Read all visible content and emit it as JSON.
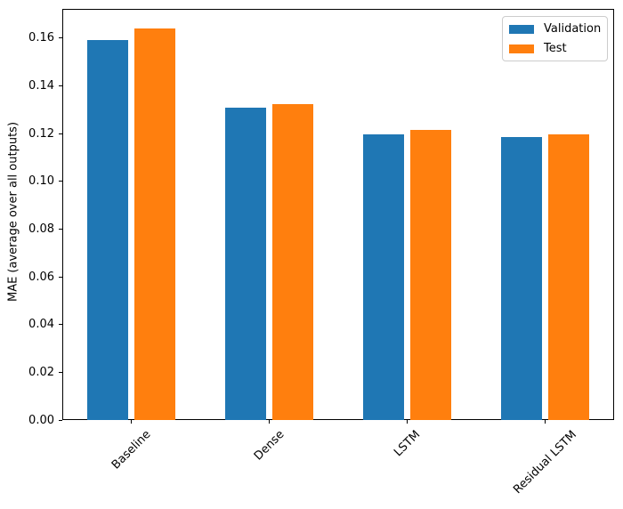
{
  "chart_data": {
    "type": "bar",
    "title": "",
    "xlabel": "",
    "ylabel": "MAE (average over all outputs)",
    "categories": [
      "Baseline",
      "Dense",
      "LSTM",
      "Residual LSTM"
    ],
    "series": [
      {
        "name": "Validation",
        "color": "#1f77b4",
        "values": [
          0.159,
          0.131,
          0.1195,
          0.1185
        ]
      },
      {
        "name": "Test",
        "color": "#ff7f0e",
        "values": [
          0.164,
          0.1325,
          0.1215,
          0.1195
        ]
      }
    ],
    "ylim": [
      0,
      0.1722
    ],
    "ytick_values": [
      0.0,
      0.02,
      0.04,
      0.06,
      0.08,
      0.1,
      0.12,
      0.14,
      0.16
    ],
    "ytick_labels": [
      "0.00",
      "0.02",
      "0.04",
      "0.06",
      "0.08",
      "0.10",
      "0.12",
      "0.14",
      "0.16"
    ],
    "grid": false,
    "legend_position": "upper right",
    "xtick_rotation_deg": 45,
    "bar_width_fraction": 0.3,
    "bar_offset_fraction": 0.17
  },
  "style": {
    "background": "#ffffff",
    "frame_color": "#000000",
    "text_color": "#000000",
    "legend_border_color": "#cccccc"
  }
}
